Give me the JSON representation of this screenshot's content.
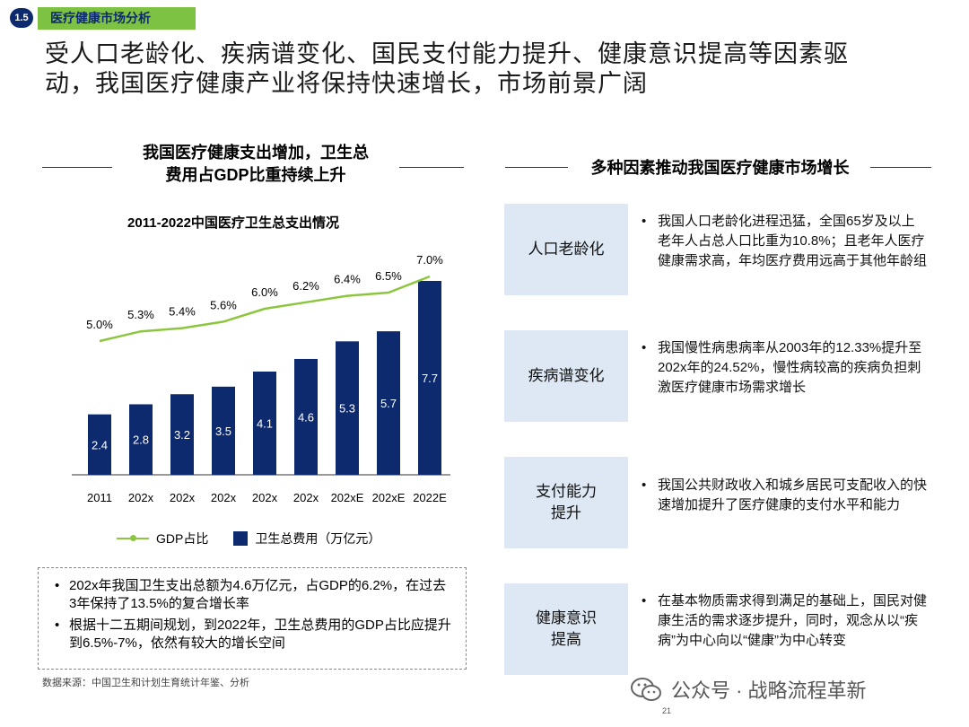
{
  "header": {
    "section_number": "1.5",
    "section_tag": "医疗健康市场分析",
    "headline_line1": "受人口老龄化、疾病谱变化、国民支付能力提升、健康意识提高等因素驱",
    "headline_line2": "动，我国医疗健康产业将保持快速增长，市场前景广阔"
  },
  "left": {
    "title_line1": "我国医疗健康支出增加，卫生总",
    "title_line2": "费用占GDP比重持续上升",
    "chart_title": "2011-2022中国医疗卫生总支出情况",
    "legend_line": "GDP占比",
    "legend_bar": "卫生总费用（万亿元）",
    "notes": [
      "202x年我国卫生支出总额为4.6万亿元，占GDP的6.2%，在过去3年保持了13.5%的复合增长率",
      "根据十二五期间规划，到2022年，卫生总费用的GDP占比应提升到6.5%-7%，依然有较大的增长空间"
    ],
    "source": "数据来源：中国卫生和计划生育统计年鉴、分析"
  },
  "chart_data": {
    "type": "bar",
    "title": "2011-2022中国医疗卫生总支出情况",
    "categories": [
      "2011",
      "202x",
      "202x",
      "202x",
      "202x",
      "202x",
      "202xE",
      "202xE",
      "2022E"
    ],
    "series": [
      {
        "name": "卫生总费用（万亿元）",
        "type": "bar",
        "values": [
          2.4,
          2.8,
          3.2,
          3.5,
          4.1,
          4.6,
          5.3,
          5.7,
          7.7
        ]
      },
      {
        "name": "GDP占比",
        "type": "line",
        "values": [
          5.0,
          5.3,
          5.4,
          5.6,
          6.0,
          6.2,
          6.4,
          6.5,
          7.0
        ]
      }
    ],
    "bar_labels": [
      "2.4",
      "2.8",
      "3.2",
      "3.5",
      "4.1",
      "4.6",
      "5.3",
      "5.7",
      "7.7"
    ],
    "line_labels": [
      "5.0%",
      "5.3%",
      "5.4%",
      "5.6%",
      "6.0%",
      "6.2%",
      "6.4%",
      "6.5%",
      "7.0%"
    ],
    "bar_color": "#0d2a6e",
    "line_color": "#8cc63f",
    "legend": "bottom"
  },
  "right": {
    "title": "多种因素推动我国医疗健康市场增长",
    "factors": [
      {
        "label": "人口老龄化",
        "desc": "我国人口老龄化进程迅猛，全国65岁及以上老年人占总人口比重为10.8%；且老年人医疗健康需求高，年均医疗费用远高于其他年龄组"
      },
      {
        "label": "疾病谱变化",
        "desc": "我国慢性病患病率从2003年的12.33%提升至202x年的24.52%，慢性病较高的疾病负担刺激医疗健康市场需求增长"
      },
      {
        "label": "支付能力提升",
        "desc": "我国公共财政收入和城乡居民可支配收入的快速增加提升了医疗健康的支付水平和能力"
      },
      {
        "label": "健康意识提高",
        "desc": "在基本物质需求得到满足的基础上，国民对健康生活的需求逐步提升，同时，观念从以“疾病”为中心向以“健康”为中心转变"
      }
    ]
  },
  "footer": {
    "watermark": "公众号 · 战略流程革新",
    "page_number": "21"
  },
  "colors": {
    "navy": "#0d2a6e",
    "green": "#7dc242",
    "factor_bg": "#dde8f4"
  }
}
